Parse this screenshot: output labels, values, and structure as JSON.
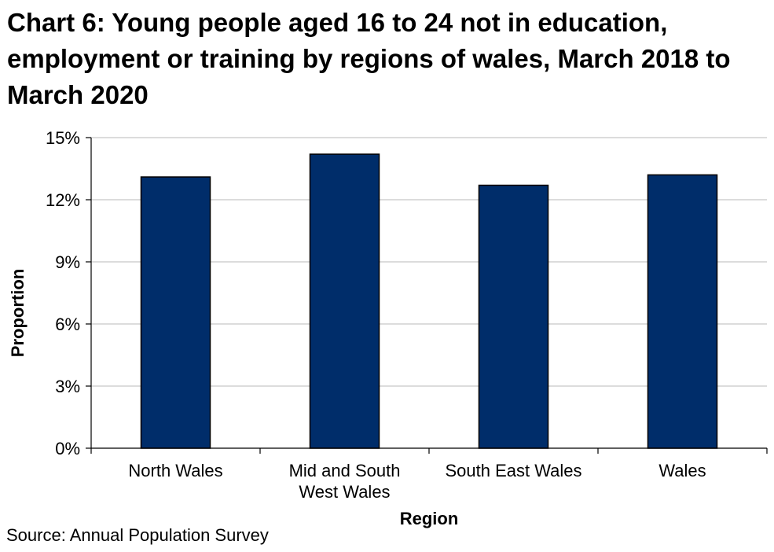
{
  "chart_data": {
    "type": "bar",
    "title": "Chart 6: Young people aged 16 to 24 not in education, employment or training by regions of wales, March 2018 to March 2020",
    "categories": [
      [
        "North Wales"
      ],
      [
        "Mid and South",
        "West Wales"
      ],
      [
        "South East Wales"
      ],
      [
        "Wales"
      ]
    ],
    "values": [
      13.1,
      14.2,
      12.7,
      13.2
    ],
    "xlabel": "Region",
    "ylabel": "Proportion",
    "ylim": [
      0,
      15
    ],
    "yticks": [
      0,
      3,
      6,
      9,
      12,
      15
    ],
    "ytick_labels": [
      "0%",
      "3%",
      "6%",
      "9%",
      "12%",
      "15%"
    ],
    "grid": true,
    "legend": "none",
    "bar_color": "#002D6A",
    "source": "Source: Annual Population Survey"
  }
}
